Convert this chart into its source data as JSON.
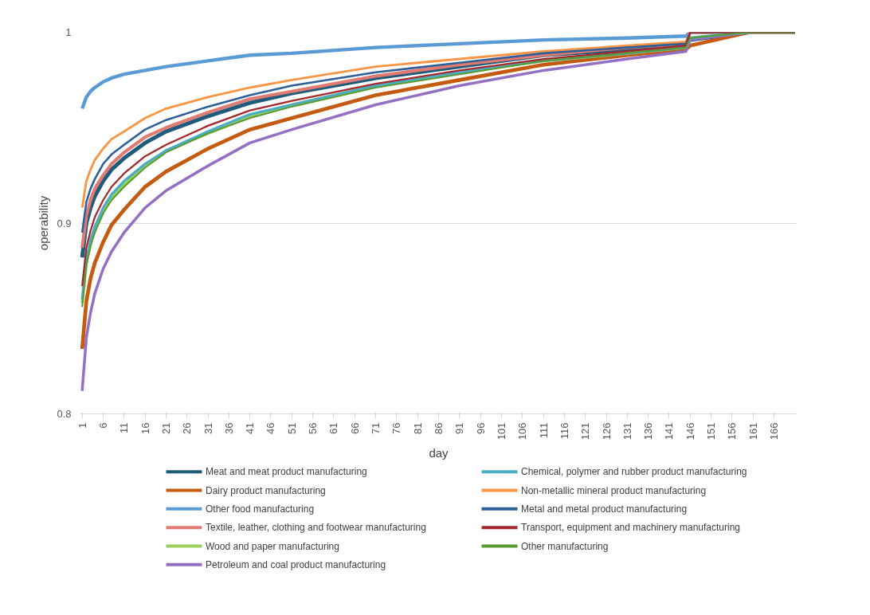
{
  "chart_data": {
    "type": "line",
    "xlabel": "day",
    "ylabel": "operability",
    "x": [
      1,
      2,
      3,
      4,
      6,
      8,
      11,
      16,
      21,
      31,
      41,
      51,
      71,
      91,
      111,
      131,
      145,
      146,
      160,
      171
    ],
    "xlim": [
      0.5,
      171.5
    ],
    "xticks": [
      1,
      6,
      11,
      16,
      21,
      26,
      31,
      36,
      41,
      46,
      51,
      56,
      61,
      66,
      71,
      76,
      81,
      86,
      91,
      96,
      101,
      106,
      111,
      116,
      121,
      126,
      131,
      136,
      141,
      146,
      151,
      156,
      161,
      166
    ],
    "ylim": [
      0.8,
      1
    ],
    "yticks": [
      0.8,
      0.9,
      {
        "value": 1,
        "label": "1"
      }
    ],
    "grid": "y",
    "legend": "bottom",
    "marker": "none",
    "line_style": "solid",
    "series": [
      {
        "name": "Meat and meat product manufacturing",
        "color": "#1f5b7a",
        "values": [
          0.882,
          0.9,
          0.908,
          0.914,
          0.922,
          0.928,
          0.934,
          0.942,
          0.948,
          0.956,
          0.963,
          0.968,
          0.976,
          0.982,
          0.988,
          0.991,
          0.994,
          0.996,
          1,
          1
        ]
      },
      {
        "name": "Dairy product manufacturing",
        "color": "#c55a11",
        "values": [
          0.834,
          0.859,
          0.871,
          0.879,
          0.89,
          0.899,
          0.907,
          0.919,
          0.927,
          0.939,
          0.949,
          0.955,
          0.967,
          0.975,
          0.983,
          0.988,
          0.991,
          0.993,
          1,
          1
        ]
      },
      {
        "name": "Other food manufacturing",
        "color": "#5b9bd5",
        "values": [
          0.96,
          0.966,
          0.969,
          0.971,
          0.974,
          0.976,
          0.978,
          0.98,
          0.982,
          0.985,
          0.988,
          0.989,
          0.992,
          0.994,
          0.996,
          0.997,
          0.998,
          1,
          1,
          1
        ]
      },
      {
        "name": "Textile, leather, clothing and footwear manufacturing",
        "color": "#e07b73",
        "values": [
          0.887,
          0.904,
          0.912,
          0.918,
          0.925,
          0.931,
          0.937,
          0.945,
          0.95,
          0.958,
          0.965,
          0.969,
          0.977,
          0.983,
          0.988,
          0.992,
          0.994,
          1,
          1,
          1
        ]
      },
      {
        "name": "Wood and paper manufacturing",
        "color": "#9bd05c",
        "values": [
          0.858,
          0.879,
          0.889,
          0.896,
          0.906,
          0.913,
          0.92,
          0.93,
          0.938,
          0.947,
          0.956,
          0.962,
          0.972,
          0.979,
          0.985,
          0.989,
          0.992,
          0.997,
          1,
          1
        ]
      },
      {
        "name": "Petroleum and coal product manufacturing",
        "color": "#9370c4",
        "values": [
          0.812,
          0.84,
          0.853,
          0.863,
          0.876,
          0.885,
          0.895,
          0.908,
          0.917,
          0.93,
          0.942,
          0.949,
          0.962,
          0.972,
          0.98,
          0.986,
          0.99,
          0.996,
          1,
          1
        ]
      },
      {
        "name": "Chemical, polymer and rubber product manufacturing",
        "color": "#4bacc6",
        "values": [
          0.86,
          0.881,
          0.891,
          0.898,
          0.908,
          0.915,
          0.922,
          0.931,
          0.938,
          0.948,
          0.957,
          0.962,
          0.972,
          0.979,
          0.985,
          0.989,
          0.992,
          0.997,
          1,
          1
        ]
      },
      {
        "name": "Non-metallic mineral product manufacturing",
        "color": "#f79646",
        "values": [
          0.908,
          0.922,
          0.928,
          0.933,
          0.939,
          0.944,
          0.948,
          0.955,
          0.96,
          0.966,
          0.971,
          0.975,
          0.982,
          0.986,
          0.99,
          0.993,
          0.995,
          1,
          1,
          1
        ]
      },
      {
        "name": "Metal and metal product manufacturing",
        "color": "#2e5f99",
        "values": [
          0.895,
          0.911,
          0.918,
          0.923,
          0.931,
          0.936,
          0.941,
          0.949,
          0.954,
          0.961,
          0.967,
          0.972,
          0.979,
          0.984,
          0.989,
          0.992,
          0.994,
          1,
          1,
          1
        ]
      },
      {
        "name": "Transport, equipment and machinery manufacturing",
        "color": "#a5282c",
        "values": [
          0.867,
          0.887,
          0.896,
          0.903,
          0.912,
          0.919,
          0.926,
          0.935,
          0.941,
          0.951,
          0.959,
          0.964,
          0.973,
          0.98,
          0.986,
          0.99,
          0.993,
          1,
          1,
          1
        ]
      },
      {
        "name": "Other manufacturing",
        "color": "#5a9a30",
        "values": [
          0.856,
          0.878,
          0.888,
          0.895,
          0.905,
          0.912,
          0.919,
          0.929,
          0.937,
          0.947,
          0.955,
          0.961,
          0.971,
          0.978,
          0.985,
          0.989,
          0.992,
          0.997,
          1,
          1
        ]
      }
    ]
  }
}
